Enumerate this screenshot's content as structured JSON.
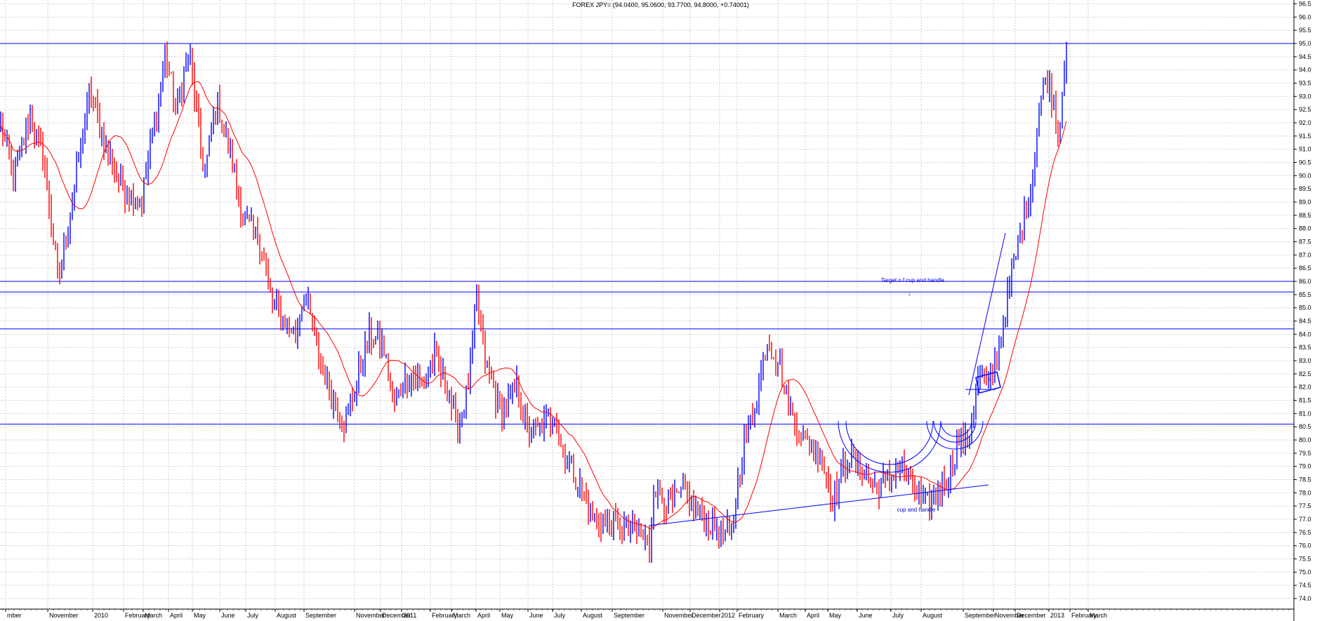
{
  "window": {
    "title": "FOREX JPY= (94.0400, 95.0600, 93.7700, 94.8000, +0.74001)"
  },
  "chart_data": {
    "type": "bar",
    "style": "OHLC price bars (up bars blue, down bars red) with moving average",
    "title": "FOREX JPY= (94.0400, 95.0600, 93.7700, 94.8000, +0.74001)",
    "ylim": [
      74.0,
      96.5
    ],
    "y_ticks": [
      "74.0",
      "74.5",
      "75.0",
      "75.5",
      "76.0",
      "76.5",
      "77.0",
      "77.5",
      "78.0",
      "78.5",
      "79.0",
      "79.5",
      "80.0",
      "80.5",
      "81.0",
      "81.5",
      "82.0",
      "82.5",
      "83.0",
      "83.5",
      "84.0",
      "84.5",
      "85.0",
      "85.5",
      "86.0",
      "86.5",
      "87.0",
      "87.5",
      "88.0",
      "88.5",
      "89.0",
      "89.5",
      "90.0",
      "90.5",
      "91.0",
      "91.5",
      "92.0",
      "92.5",
      "93.0",
      "93.5",
      "94.0",
      "94.5",
      "95.0",
      "95.5",
      "96.0",
      "96.5"
    ],
    "x_labels": [
      "mber",
      "November",
      "2010",
      "February",
      "March",
      "April",
      "May",
      "June",
      "July",
      "August",
      "September",
      "November",
      "December",
      "2011",
      "February",
      "March",
      "April",
      "May",
      "June",
      "July",
      "August",
      "September",
      "November",
      "December",
      "2012",
      "February",
      "March",
      "April",
      "May",
      "June",
      "July",
      "August",
      "September",
      "November",
      "December",
      "2013",
      "February",
      "March"
    ],
    "grid": true,
    "colors": {
      "up_bar": "#0000ff",
      "down_bar": "#ff0000",
      "moving_average": "#ff0000",
      "annotation_lines": "#0000ff",
      "grid": "#c8c8c8"
    },
    "price_keypoints": [
      {
        "x": 0,
        "v": 91.8
      },
      {
        "x": 18,
        "v": 90.0
      },
      {
        "x": 42,
        "v": 92.2
      },
      {
        "x": 62,
        "v": 90.5
      },
      {
        "x": 82,
        "v": 86.0
      },
      {
        "x": 100,
        "v": 88.8
      },
      {
        "x": 128,
        "v": 93.3
      },
      {
        "x": 150,
        "v": 91.0
      },
      {
        "x": 175,
        "v": 89.5
      },
      {
        "x": 200,
        "v": 89.0
      },
      {
        "x": 235,
        "v": 94.6
      },
      {
        "x": 250,
        "v": 92.5
      },
      {
        "x": 268,
        "v": 94.8
      },
      {
        "x": 290,
        "v": 90.0
      },
      {
        "x": 308,
        "v": 92.8
      },
      {
        "x": 330,
        "v": 90.5
      },
      {
        "x": 345,
        "v": 88.3
      },
      {
        "x": 370,
        "v": 87.5
      },
      {
        "x": 385,
        "v": 85.3
      },
      {
        "x": 405,
        "v": 84.5
      },
      {
        "x": 420,
        "v": 84.0
      },
      {
        "x": 433,
        "v": 85.6
      },
      {
        "x": 450,
        "v": 83.5
      },
      {
        "x": 470,
        "v": 81.8
      },
      {
        "x": 488,
        "v": 80.6
      },
      {
        "x": 505,
        "v": 82.0
      },
      {
        "x": 525,
        "v": 84.0
      },
      {
        "x": 545,
        "v": 83.5
      },
      {
        "x": 560,
        "v": 81.3
      },
      {
        "x": 580,
        "v": 82.5
      },
      {
        "x": 600,
        "v": 82.2
      },
      {
        "x": 618,
        "v": 83.2
      },
      {
        "x": 635,
        "v": 82.0
      },
      {
        "x": 650,
        "v": 80.5
      },
      {
        "x": 660,
        "v": 81.2
      },
      {
        "x": 668,
        "v": 82.5
      },
      {
        "x": 678,
        "v": 85.3
      },
      {
        "x": 690,
        "v": 83.0
      },
      {
        "x": 712,
        "v": 81.0
      },
      {
        "x": 735,
        "v": 82.0
      },
      {
        "x": 752,
        "v": 80.2
      },
      {
        "x": 775,
        "v": 80.6
      },
      {
        "x": 790,
        "v": 81.0
      },
      {
        "x": 800,
        "v": 79.5
      },
      {
        "x": 820,
        "v": 78.5
      },
      {
        "x": 845,
        "v": 77.0
      },
      {
        "x": 875,
        "v": 76.8
      },
      {
        "x": 905,
        "v": 76.6
      },
      {
        "x": 924,
        "v": 76.0
      },
      {
        "x": 930,
        "v": 78.3
      },
      {
        "x": 950,
        "v": 77.5
      },
      {
        "x": 975,
        "v": 78.0
      },
      {
        "x": 995,
        "v": 77.2
      },
      {
        "x": 1015,
        "v": 76.7
      },
      {
        "x": 1040,
        "v": 76.4
      },
      {
        "x": 1058,
        "v": 79.8
      },
      {
        "x": 1075,
        "v": 81.5
      },
      {
        "x": 1092,
        "v": 83.8
      },
      {
        "x": 1108,
        "v": 83.0
      },
      {
        "x": 1125,
        "v": 81.0
      },
      {
        "x": 1145,
        "v": 80.0
      },
      {
        "x": 1165,
        "v": 79.6
      },
      {
        "x": 1185,
        "v": 77.8
      },
      {
        "x": 1205,
        "v": 79.3
      },
      {
        "x": 1225,
        "v": 79.0
      },
      {
        "x": 1245,
        "v": 78.2
      },
      {
        "x": 1265,
        "v": 78.5
      },
      {
        "x": 1280,
        "v": 79.2
      },
      {
        "x": 1300,
        "v": 78.3
      },
      {
        "x": 1315,
        "v": 77.5
      },
      {
        "x": 1330,
        "v": 77.8
      },
      {
        "x": 1350,
        "v": 78.8
      },
      {
        "x": 1365,
        "v": 80.0
      },
      {
        "x": 1378,
        "v": 79.8
      },
      {
        "x": 1385,
        "v": 81.3
      },
      {
        "x": 1395,
        "v": 82.6
      },
      {
        "x": 1408,
        "v": 82.0
      },
      {
        "x": 1425,
        "v": 84.0
      },
      {
        "x": 1440,
        "v": 86.2
      },
      {
        "x": 1455,
        "v": 88.2
      },
      {
        "x": 1468,
        "v": 89.6
      },
      {
        "x": 1478,
        "v": 92.5
      },
      {
        "x": 1490,
        "v": 93.8
      },
      {
        "x": 1500,
        "v": 92.8
      },
      {
        "x": 1507,
        "v": 91.2
      },
      {
        "x": 1512,
        "v": 93.5
      },
      {
        "x": 1518,
        "v": 95.0
      }
    ],
    "horizontal_levels": [
      95.0,
      86.0,
      85.6,
      84.2,
      80.6
    ],
    "annotations": [
      {
        "text": "Target o f cup and handle"
      },
      {
        "text": "cup and handle"
      },
      {
        "text": "↓"
      },
      {
        "text": "↓"
      }
    ]
  }
}
